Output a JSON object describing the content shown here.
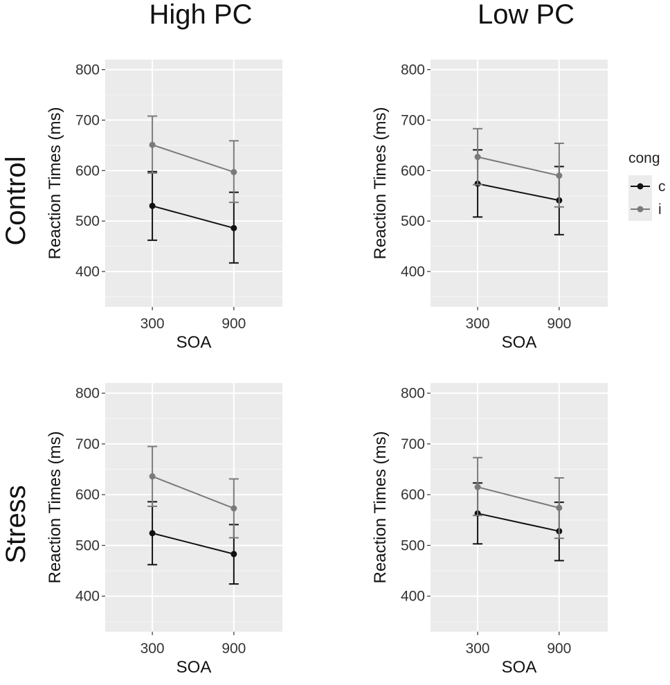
{
  "figure": {
    "columns": [
      "High PC",
      "Low PC"
    ],
    "rows": [
      "Control",
      "Stress"
    ]
  },
  "legend": {
    "title": "cong",
    "items": [
      {
        "key": "c",
        "label": "c",
        "color": "#111111"
      },
      {
        "key": "i",
        "label": "i",
        "color": "#7a7a7a"
      }
    ]
  },
  "chart_data": [
    {
      "type": "line",
      "row": "Control",
      "column": "High PC",
      "xlabel": "SOA",
      "ylabel": "Reaction Times (ms)",
      "categories": [
        "300",
        "900"
      ],
      "ylim": [
        330,
        820
      ],
      "yticks": [
        400,
        500,
        600,
        700,
        800
      ],
      "series": [
        {
          "name": "c",
          "values": [
            530,
            486
          ],
          "err_low": [
            462,
            417
          ],
          "err_high": [
            598,
            557
          ]
        },
        {
          "name": "i",
          "values": [
            651,
            597
          ],
          "err_low": [
            595,
            537
          ],
          "err_high": [
            708,
            659
          ]
        }
      ]
    },
    {
      "type": "line",
      "row": "Control",
      "column": "Low PC",
      "xlabel": "SOA",
      "ylabel": "Reaction Times (ms)",
      "categories": [
        "300",
        "900"
      ],
      "ylim": [
        330,
        820
      ],
      "yticks": [
        400,
        500,
        600,
        700,
        800
      ],
      "series": [
        {
          "name": "c",
          "values": [
            574,
            541
          ],
          "err_low": [
            508,
            473
          ],
          "err_high": [
            641,
            608
          ]
        },
        {
          "name": "i",
          "values": [
            627,
            590
          ],
          "err_low": [
            572,
            528
          ],
          "err_high": [
            683,
            654
          ]
        }
      ]
    },
    {
      "type": "line",
      "row": "Stress",
      "column": "High PC",
      "xlabel": "SOA",
      "ylabel": "Reaction Times (ms)",
      "categories": [
        "300",
        "900"
      ],
      "ylim": [
        330,
        820
      ],
      "yticks": [
        400,
        500,
        600,
        700,
        800
      ],
      "series": [
        {
          "name": "c",
          "values": [
            524,
            483
          ],
          "err_low": [
            462,
            424
          ],
          "err_high": [
            586,
            541
          ]
        },
        {
          "name": "i",
          "values": [
            636,
            573
          ],
          "err_low": [
            577,
            515
          ],
          "err_high": [
            695,
            631
          ]
        }
      ]
    },
    {
      "type": "line",
      "row": "Stress",
      "column": "Low PC",
      "xlabel": "SOA",
      "ylabel": "Reaction Times (ms)",
      "categories": [
        "300",
        "900"
      ],
      "ylim": [
        330,
        820
      ],
      "yticks": [
        400,
        500,
        600,
        700,
        800
      ],
      "series": [
        {
          "name": "c",
          "values": [
            563,
            528
          ],
          "err_low": [
            503,
            470
          ],
          "err_high": [
            623,
            585
          ]
        },
        {
          "name": "i",
          "values": [
            615,
            574
          ],
          "err_low": [
            559,
            514
          ],
          "err_high": [
            673,
            633
          ]
        }
      ]
    }
  ]
}
